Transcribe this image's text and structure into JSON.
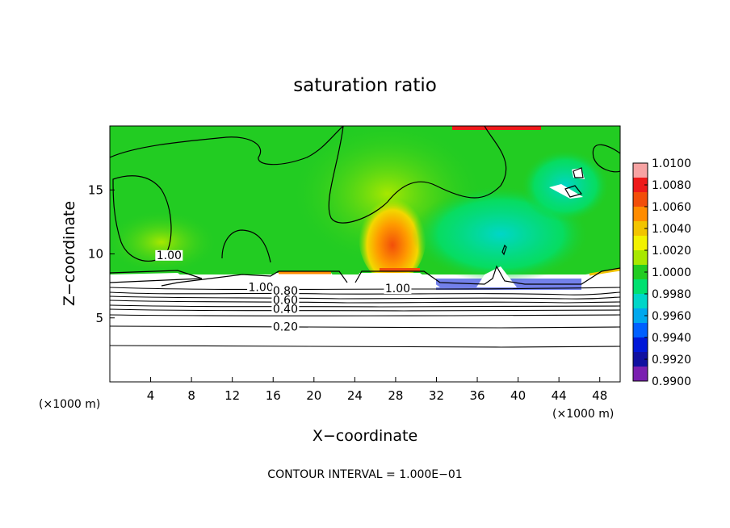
{
  "chart_data": {
    "type": "heatmap",
    "title": "saturation ratio",
    "xlabel": "X−coordinate",
    "ylabel": "Z−coordinate",
    "x_units_left": "(×1000 m)",
    "x_units_right": "(×1000 m)",
    "xlim": [
      0,
      50
    ],
    "ylim": [
      0,
      20
    ],
    "x_ticks": [
      4,
      8,
      12,
      16,
      20,
      24,
      28,
      32,
      36,
      40,
      44,
      48
    ],
    "y_ticks": [
      5,
      10,
      15
    ],
    "footer": "CONTOUR INTERVAL = 1.000E−01",
    "colorbar": {
      "labels": [
        "1.0100",
        "1.0080",
        "1.0060",
        "1.0040",
        "1.0020",
        "1.0000",
        "0.9980",
        "0.9960",
        "0.9940",
        "0.9920",
        "0.9900"
      ],
      "colors": [
        "#f7a3a3",
        "#ee1a1a",
        "#f24e0a",
        "#ff8c00",
        "#f2c400",
        "#f2f200",
        "#a8e800",
        "#22cc22",
        "#00e070",
        "#00d6c8",
        "#00a8ee",
        "#0060ff",
        "#0018d8",
        "#1010a0",
        "#7a1fb0"
      ]
    },
    "contour_labels": [
      {
        "text": "1.00",
        "x": 5.8,
        "z": 9.6
      },
      {
        "text": "1.00",
        "x": 14.8,
        "z": 7.1
      },
      {
        "text": "0.80",
        "x": 17.2,
        "z": 6.8
      },
      {
        "text": "0.60",
        "x": 17.2,
        "z": 6.1
      },
      {
        "text": "0.40",
        "x": 17.2,
        "z": 5.4
      },
      {
        "text": "0.20",
        "x": 17.2,
        "z": 4.0
      },
      {
        "text": "1.00",
        "x": 28.2,
        "z": 7.0
      }
    ]
  }
}
